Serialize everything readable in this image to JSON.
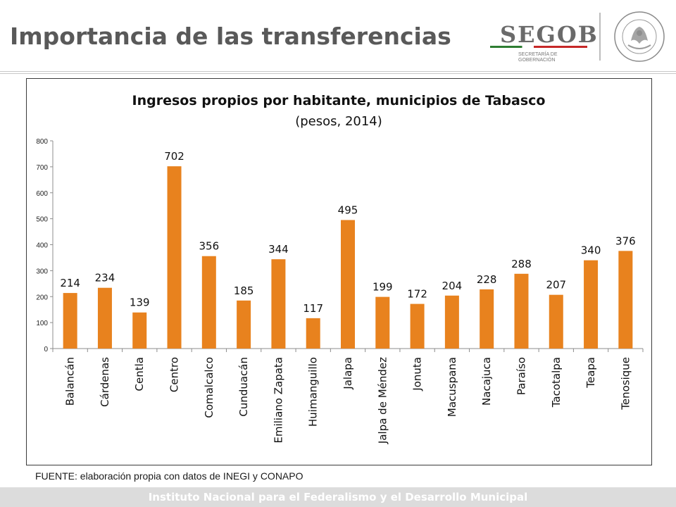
{
  "slide": {
    "title": "Importancia de las transferencias",
    "source": "FUENTE: elaboración propia con datos de INEGI y CONAPO",
    "footer": "Instituto Nacional para el Federalismo y el Desarrollo Municipal"
  },
  "logo": {
    "name": "SEGOB",
    "subtitle": "SECRETARÍA DE\nGOBERNACIÓN",
    "seal_text": "ESTADOS UNIDOS MEXICANOS"
  },
  "colors": {
    "bar": "#e8821e",
    "title_text": "#595959",
    "footer_bg": "#dcdcdc"
  },
  "chart_data": {
    "type": "bar",
    "title": "Ingresos propios por habitante, municipios de Tabasco",
    "subtitle": "(pesos, 2014)",
    "categories": [
      "Balancán",
      "Cárdenas",
      "Centla",
      "Centro",
      "Comalcalco",
      "Cunduacán",
      "Emiliano Zapata",
      "Huimanguillo",
      "Jalapa",
      "Jalpa de Méndez",
      "Jonuta",
      "Macuspana",
      "Nacajuca",
      "Paraíso",
      "Tacotalpa",
      "Teapa",
      "Tenosique"
    ],
    "values": [
      214,
      234,
      139,
      702,
      356,
      185,
      344,
      117,
      495,
      199,
      172,
      204,
      228,
      288,
      207,
      340,
      376
    ],
    "yticks": [
      0,
      100,
      200,
      300,
      400,
      500,
      600,
      700,
      800
    ],
    "ylim": [
      0,
      800
    ],
    "grid": false,
    "legend": "none",
    "data_labels": true
  }
}
